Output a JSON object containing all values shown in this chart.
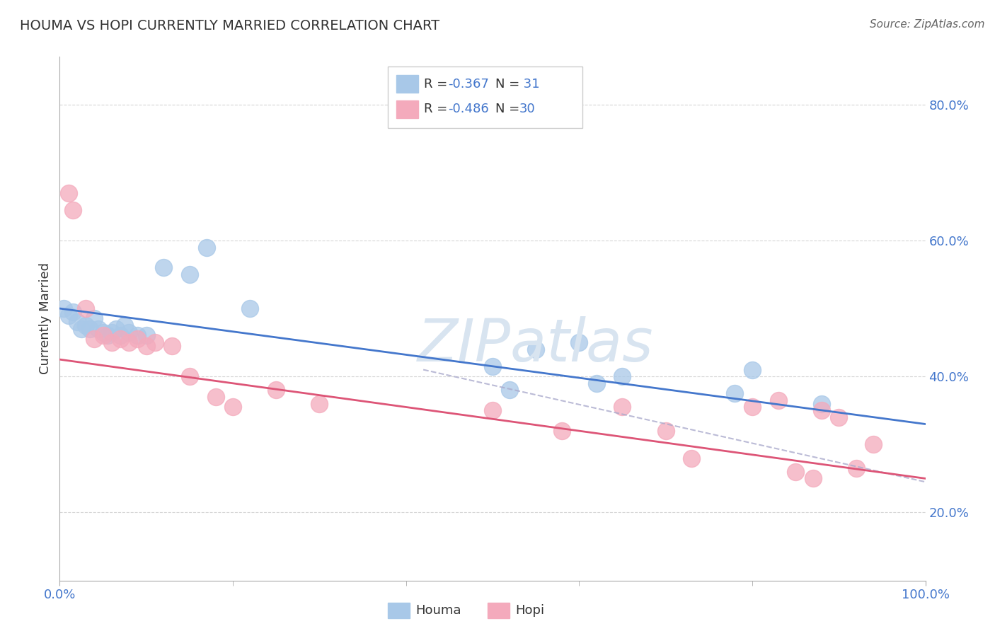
{
  "title": "HOUMA VS HOPI CURRENTLY MARRIED CORRELATION CHART",
  "source": "Source: ZipAtlas.com",
  "ylabel": "Currently Married",
  "houma_R": -0.367,
  "houma_N": 31,
  "hopi_R": -0.486,
  "hopi_N": 30,
  "houma_color": "#a8c8e8",
  "houma_edge_color": "#a8c8e8",
  "hopi_color": "#f4aabc",
  "hopi_edge_color": "#f4aabc",
  "houma_line_color": "#4477cc",
  "hopi_line_color": "#dd5577",
  "dash_line_color": "#aaaacc",
  "legend_label_houma": "Houma",
  "legend_label_hopi": "Hopi",
  "houma_x": [
    0.5,
    1.0,
    1.5,
    2.0,
    2.5,
    3.0,
    3.5,
    4.0,
    4.5,
    5.0,
    5.5,
    6.0,
    6.5,
    7.0,
    7.5,
    8.0,
    9.0,
    10.0,
    12.0,
    15.0,
    17.0,
    22.0,
    50.0,
    52.0,
    55.0,
    60.0,
    62.0,
    65.0,
    78.0,
    80.0,
    88.0
  ],
  "houma_y": [
    50.0,
    49.0,
    49.5,
    48.0,
    47.0,
    47.5,
    47.0,
    48.5,
    47.0,
    46.5,
    46.0,
    46.5,
    47.0,
    46.0,
    47.5,
    46.5,
    46.0,
    46.0,
    56.0,
    55.0,
    59.0,
    50.0,
    41.5,
    38.0,
    44.0,
    45.0,
    39.0,
    40.0,
    37.5,
    41.0,
    36.0
  ],
  "hopi_x": [
    1.0,
    1.5,
    3.0,
    4.0,
    5.0,
    6.0,
    7.0,
    8.0,
    9.0,
    10.0,
    11.0,
    13.0,
    15.0,
    18.0,
    20.0,
    25.0,
    30.0,
    50.0,
    58.0,
    65.0,
    70.0,
    73.0,
    80.0,
    83.0,
    85.0,
    87.0,
    88.0,
    90.0,
    92.0,
    94.0
  ],
  "hopi_y": [
    67.0,
    64.5,
    50.0,
    45.5,
    46.0,
    45.0,
    45.5,
    45.0,
    45.5,
    44.5,
    45.0,
    44.5,
    40.0,
    37.0,
    35.5,
    38.0,
    36.0,
    35.0,
    32.0,
    35.5,
    32.0,
    28.0,
    35.5,
    36.5,
    26.0,
    25.0,
    35.0,
    34.0,
    26.5,
    30.0
  ],
  "xmin": 0,
  "xmax": 100,
  "ymin": 10,
  "ymax": 87,
  "y_ticks": [
    20,
    40,
    60,
    80
  ],
  "x_ticks_minor": [
    20,
    40,
    60,
    80
  ],
  "houma_line_x0": 0,
  "houma_line_x1": 100,
  "houma_line_y0": 50.0,
  "houma_line_y1": 33.0,
  "hopi_line_x0": 0,
  "hopi_line_x1": 100,
  "hopi_line_y0": 42.5,
  "hopi_line_y1": 25.0,
  "dash_x0": 42,
  "dash_x1": 100,
  "dash_y0": 41.0,
  "dash_y1": 24.5,
  "background_color": "#ffffff",
  "grid_color": "#cccccc",
  "tick_color": "#4477cc",
  "label_color": "#333333",
  "watermark_text": "ZIPatlas",
  "watermark_color": "#d8e4f0",
  "dot_size": 300
}
